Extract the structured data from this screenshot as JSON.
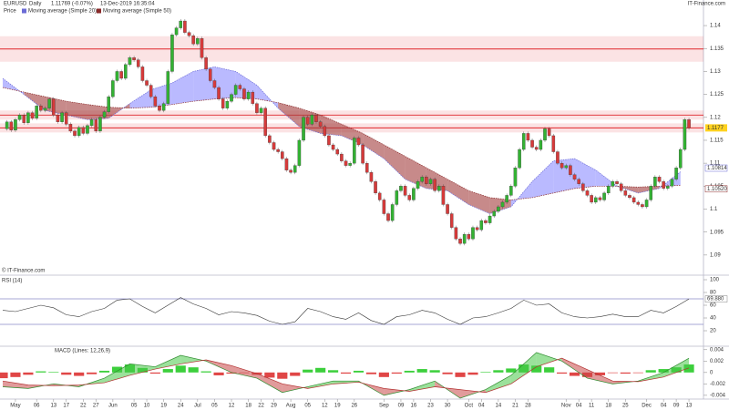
{
  "chart_data": [
    {
      "type": "candlestick",
      "title": "EURUSD",
      "period": "Daily",
      "quote": "1.11769 (-0.07%)",
      "timestamp": "13-Dec-2019 16:35:04",
      "watermark": "IT-Finance.com",
      "source": "© IT-Finance.com",
      "name": "Price",
      "up_color": "#33b233",
      "down_color": "#d63a3a",
      "xlim": [
        0,
        165
      ],
      "ylim": [
        1.086,
        1.142
      ],
      "yticks": [
        1.09,
        1.095,
        1.1,
        1.105,
        1.11,
        1.115,
        1.12,
        1.125,
        1.13,
        1.135,
        1.14
      ],
      "close": [
        1.1175,
        1.119,
        1.1172,
        1.1195,
        1.1205,
        1.1188,
        1.121,
        1.1198,
        1.1225,
        1.1215,
        1.122,
        1.124,
        1.1205,
        1.119,
        1.121,
        1.1185,
        1.117,
        1.116,
        1.1178,
        1.1165,
        1.1182,
        1.1195,
        1.117,
        1.12,
        1.1212,
        1.1245,
        1.128,
        1.13,
        1.1285,
        1.1315,
        1.133,
        1.1325,
        1.131,
        1.128,
        1.127,
        1.1245,
        1.1225,
        1.1215,
        1.123,
        1.13,
        1.138,
        1.1395,
        1.141,
        1.1385,
        1.1378,
        1.136,
        1.1372,
        1.133,
        1.1305,
        1.128,
        1.1265,
        1.124,
        1.122,
        1.1235,
        1.125,
        1.127,
        1.1262,
        1.124,
        1.1255,
        1.123,
        1.121,
        1.122,
        1.116,
        1.1145,
        1.113,
        1.1125,
        1.111,
        1.1085,
        1.108,
        1.1095,
        1.115,
        1.12,
        1.1185,
        1.1205,
        1.119,
        1.118,
        1.116,
        1.114,
        1.113,
        1.112,
        1.1105,
        1.1095,
        1.11,
        1.1155,
        1.114,
        1.11,
        1.108,
        1.106,
        1.1035,
        1.102,
        1.099,
        1.0975,
        1.101,
        1.104,
        1.105,
        1.103,
        1.102,
        1.1045,
        1.106,
        1.107,
        1.1055,
        1.1065,
        1.104,
        1.105,
        1.101,
        1.099,
        1.096,
        1.0935,
        1.0925,
        1.0945,
        1.0935,
        1.096,
        1.0955,
        1.0975,
        1.097,
        1.0985,
        1.0995,
        1.1005,
        1.1015,
        1.103,
        1.105,
        1.109,
        1.113,
        1.1165,
        1.115,
        1.1135,
        1.113,
        1.115,
        1.1175,
        1.116,
        1.1125,
        1.11,
        1.109,
        1.1095,
        1.1075,
        1.1065,
        1.1055,
        1.104,
        1.103,
        1.1015,
        1.1025,
        1.102,
        1.1035,
        1.105,
        1.106,
        1.1055,
        1.104,
        1.103,
        1.1025,
        1.1015,
        1.101,
        1.1005,
        1.102,
        1.105,
        1.107,
        1.106,
        1.1045,
        1.105,
        1.1065,
        1.109,
        1.113,
        1.1195,
        1.1177
      ],
      "ribbon_colors": [
        "#8c8cff",
        "#a13c3c"
      ],
      "series": [
        {
          "name": "Moving average (Simple 20)",
          "color": "#6b6bd6",
          "last_label": "1.10814",
          "x": [
            0,
            5,
            10,
            15,
            20,
            25,
            30,
            35,
            40,
            45,
            50,
            55,
            60,
            65,
            70,
            75,
            80,
            85,
            90,
            95,
            100,
            105,
            110,
            115,
            120,
            125,
            130,
            135,
            140,
            145,
            150,
            155,
            160
          ],
          "values": [
            1.1285,
            1.125,
            1.1215,
            1.1205,
            1.1195,
            1.1198,
            1.123,
            1.126,
            1.1275,
            1.13,
            1.131,
            1.13,
            1.127,
            1.122,
            1.118,
            1.1165,
            1.116,
            1.114,
            1.111,
            1.1065,
            1.1045,
            1.104,
            1.101,
            1.099,
            1.1005,
            1.106,
            1.1105,
            1.111,
            1.1085,
            1.105,
            1.1035,
            1.1045,
            1.10814
          ]
        },
        {
          "name": "Moving average (Simple 50)",
          "color": "#8a2a2a",
          "last_label": "1.10520",
          "x": [
            0,
            5,
            10,
            15,
            20,
            25,
            30,
            35,
            40,
            45,
            50,
            55,
            60,
            65,
            70,
            75,
            80,
            85,
            90,
            95,
            100,
            105,
            110,
            115,
            120,
            125,
            130,
            135,
            140,
            145,
            150,
            155,
            160
          ],
          "values": [
            1.1265,
            1.1255,
            1.1245,
            1.1235,
            1.1228,
            1.1222,
            1.122,
            1.1222,
            1.1228,
            1.1235,
            1.124,
            1.1243,
            1.124,
            1.1232,
            1.122,
            1.1205,
            1.1185,
            1.1165,
            1.114,
            1.1115,
            1.109,
            1.1065,
            1.104,
            1.1025,
            1.102,
            1.1025,
            1.1035,
            1.1045,
            1.105,
            1.105,
            1.1048,
            1.105,
            1.1052
          ]
        }
      ],
      "levels": [
        1.1349,
        1.1205,
        1.1177
      ],
      "level_color": "#e0262b",
      "last_color": "#ffd21f"
    },
    {
      "type": "line",
      "title": "RSI (14)",
      "color": "#333333",
      "last_label": "69.880",
      "xlim": [
        0,
        165
      ],
      "ylim": [
        0,
        100
      ],
      "yticks": [
        20,
        40,
        60,
        80,
        100
      ],
      "levels": [
        30,
        70
      ],
      "level_color": "#8a8ac8",
      "x": [
        0,
        3,
        6,
        9,
        12,
        15,
        18,
        21,
        24,
        27,
        30,
        33,
        36,
        39,
        42,
        45,
        48,
        51,
        54,
        57,
        60,
        63,
        66,
        69,
        72,
        75,
        78,
        81,
        84,
        87,
        90,
        93,
        96,
        99,
        102,
        105,
        108,
        111,
        114,
        117,
        120,
        123,
        126,
        129,
        132,
        135,
        138,
        141,
        144,
        147,
        150,
        153,
        156,
        159,
        162
      ],
      "values": [
        52,
        50,
        55,
        60,
        56,
        45,
        42,
        50,
        55,
        68,
        70,
        58,
        48,
        60,
        72,
        62,
        55,
        45,
        50,
        48,
        44,
        35,
        30,
        34,
        55,
        50,
        42,
        38,
        48,
        36,
        30,
        42,
        45,
        52,
        48,
        38,
        30,
        40,
        42,
        48,
        55,
        68,
        60,
        62,
        48,
        42,
        40,
        42,
        46,
        42,
        42,
        52,
        48,
        58,
        69.88
      ]
    },
    {
      "type": "macd",
      "title": "MACD (Lines: 12,26,9)",
      "xlim": [
        0,
        165
      ],
      "ylim": [
        -0.0045,
        0.0046
      ],
      "yticks": [
        -0.004,
        -0.002,
        0,
        0.002,
        0.004
      ],
      "xticks": [
        {
          "value": 3,
          "label": "May"
        },
        {
          "value": 8,
          "label": "06"
        },
        {
          "value": 12,
          "label": "13"
        },
        {
          "value": 15,
          "label": "17"
        },
        {
          "value": 19,
          "label": "22"
        },
        {
          "value": 22,
          "label": "27"
        },
        {
          "value": 26,
          "label": "Jun"
        },
        {
          "value": 31,
          "label": "05"
        },
        {
          "value": 34,
          "label": "10"
        },
        {
          "value": 38,
          "label": "19"
        },
        {
          "value": 42,
          "label": "24"
        },
        {
          "value": 46,
          "label": "Jul"
        },
        {
          "value": 50,
          "label": "05"
        },
        {
          "value": 54,
          "label": "12"
        },
        {
          "value": 58,
          "label": "18"
        },
        {
          "value": 61,
          "label": "22"
        },
        {
          "value": 64,
          "label": "29"
        },
        {
          "value": 68,
          "label": "Aug"
        },
        {
          "value": 72,
          "label": "05"
        },
        {
          "value": 76,
          "label": "12"
        },
        {
          "value": 79,
          "label": "19"
        },
        {
          "value": 83,
          "label": "26"
        },
        {
          "value": 90,
          "label": "Sep"
        },
        {
          "value": 94,
          "label": "09"
        },
        {
          "value": 97,
          "label": "16"
        },
        {
          "value": 101,
          "label": "23"
        },
        {
          "value": 105,
          "label": "30"
        },
        {
          "value": 110,
          "label": "Oct"
        },
        {
          "value": 113,
          "label": "04"
        },
        {
          "value": 117,
          "label": "14"
        },
        {
          "value": 121,
          "label": "21"
        },
        {
          "value": 124,
          "label": "28"
        },
        {
          "value": 133,
          "label": "Nov"
        },
        {
          "value": 136,
          "label": "04"
        },
        {
          "value": 139,
          "label": "11"
        },
        {
          "value": 143,
          "label": "18"
        },
        {
          "value": 147,
          "label": "25"
        },
        {
          "value": 152,
          "label": "Dec"
        },
        {
          "value": 156,
          "label": "04"
        },
        {
          "value": 159,
          "label": "09"
        },
        {
          "value": 162,
          "label": "13"
        }
      ],
      "histogram": {
        "up_color": "#3ccf3c",
        "down_color": "#e04646",
        "x": [
          0,
          3,
          6,
          9,
          12,
          15,
          18,
          21,
          24,
          27,
          30,
          33,
          36,
          39,
          42,
          45,
          48,
          51,
          54,
          57,
          60,
          63,
          66,
          69,
          72,
          75,
          78,
          81,
          84,
          87,
          90,
          93,
          96,
          99,
          102,
          105,
          108,
          111,
          114,
          117,
          120,
          123,
          126,
          129,
          132,
          135,
          138,
          141,
          144,
          147,
          150,
          153,
          156,
          159,
          162
        ],
        "values": [
          -0.001,
          -0.0008,
          -0.0004,
          0.0002,
          0.0001,
          -0.0004,
          -0.0006,
          -0.0003,
          0.0003,
          0.001,
          0.0014,
          0.0008,
          -0.0002,
          0.0006,
          0.0012,
          0.0009,
          0.0002,
          -0.0005,
          -0.0002,
          -0.0001,
          -0.0004,
          -0.0009,
          -0.0011,
          -0.0006,
          0.0005,
          0.0008,
          0.0004,
          -0.0002,
          0.0003,
          -0.0003,
          -0.0008,
          -0.0002,
          0.0003,
          0.0006,
          0.0004,
          -0.0003,
          -0.0008,
          -0.0004,
          0.0001,
          0.0004,
          0.0007,
          0.0014,
          0.0012,
          0.0009,
          -0.0002,
          -0.0006,
          -0.0008,
          -0.0005,
          -0.0001,
          -0.0002,
          -0.0001,
          0.0004,
          0.0006,
          0.0009,
          0.0014
        ]
      },
      "ribbon_colors": [
        "#49c949",
        "#c94949"
      ],
      "series": [
        {
          "color": "#2e8b2e",
          "x": [
            0,
            6,
            12,
            18,
            24,
            30,
            36,
            42,
            48,
            54,
            60,
            66,
            72,
            78,
            84,
            90,
            96,
            102,
            108,
            114,
            120,
            126,
            132,
            138,
            144,
            150,
            156,
            162
          ],
          "values": [
            -0.0025,
            -0.0028,
            -0.002,
            -0.0025,
            -0.001,
            0.0015,
            0.001,
            0.003,
            0.002,
            0,
            -0.001,
            -0.0035,
            -0.0025,
            -0.0015,
            -0.0015,
            -0.004,
            -0.003,
            -0.0015,
            -0.0045,
            -0.003,
            -0.0005,
            0.0035,
            0.002,
            -0.001,
            -0.002,
            -0.0015,
            0,
            0.0025
          ]
        },
        {
          "color": "#b23030",
          "x": [
            0,
            6,
            12,
            18,
            24,
            30,
            36,
            42,
            48,
            54,
            60,
            66,
            72,
            78,
            84,
            90,
            96,
            102,
            108,
            114,
            120,
            126,
            132,
            138,
            144,
            150,
            156,
            162
          ],
          "values": [
            -0.0015,
            -0.0022,
            -0.0023,
            -0.0022,
            -0.0018,
            -0.0005,
            0.0006,
            0.0015,
            0.0022,
            0.0012,
            -0.0002,
            -0.002,
            -0.0028,
            -0.002,
            -0.0017,
            -0.0028,
            -0.0033,
            -0.0025,
            -0.003,
            -0.0035,
            -0.002,
            0.001,
            0.0025,
            0.0005,
            -0.0015,
            -0.0016,
            -0.0008,
            0.0008
          ]
        }
      ]
    }
  ]
}
